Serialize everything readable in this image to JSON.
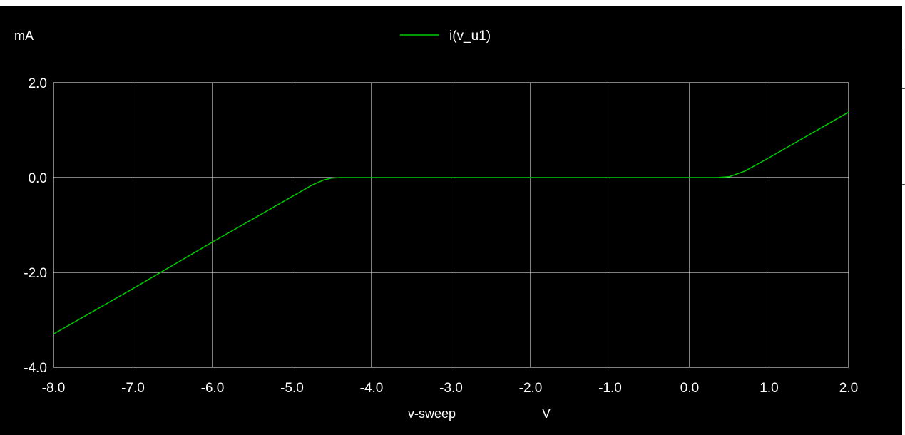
{
  "chart_data": {
    "type": "line",
    "y_unit": "mA",
    "xlabel": "v-sweep",
    "x_unit": "V",
    "xlim": [
      -8.0,
      2.0
    ],
    "ylim": [
      -4.0,
      2.0
    ],
    "x_ticks": [
      -8.0,
      -7.0,
      -6.0,
      -5.0,
      -4.0,
      -3.0,
      -2.0,
      -1.0,
      0.0,
      1.0,
      2.0
    ],
    "x_tick_labels": [
      "-8.0",
      "-7.0",
      "-6.0",
      "-5.0",
      "-4.0",
      "-3.0",
      "-2.0",
      "-1.0",
      "0.0",
      "1.0",
      "2.0"
    ],
    "y_tick_labels": [
      {
        "value": 2.0,
        "label": "2.0"
      },
      {
        "value": 0.0,
        "label": "0.0"
      },
      {
        "value": -2.0,
        "label": "-2.0"
      },
      {
        "value": -4.0,
        "label": "-4.0"
      }
    ],
    "grid": true,
    "legend_position": "top-center",
    "background_color": "#000000",
    "grid_color": "#ffffff",
    "series": [
      {
        "name": "i(v_u1)",
        "color": "#00cc00",
        "points": [
          [
            -8.0,
            -3.3
          ],
          [
            -7.5,
            -2.82
          ],
          [
            -7.0,
            -2.34
          ],
          [
            -6.5,
            -1.85
          ],
          [
            -6.0,
            -1.36
          ],
          [
            -5.5,
            -0.88
          ],
          [
            -5.0,
            -0.4
          ],
          [
            -4.75,
            -0.16
          ],
          [
            -4.6,
            -0.05
          ],
          [
            -4.5,
            -0.01
          ],
          [
            -4.4,
            0.0
          ],
          [
            -3.0,
            0.0
          ],
          [
            -1.0,
            0.0
          ],
          [
            0.0,
            0.0
          ],
          [
            0.35,
            0.0
          ],
          [
            0.5,
            0.02
          ],
          [
            0.7,
            0.14
          ],
          [
            1.0,
            0.42
          ],
          [
            1.5,
            0.9
          ],
          [
            2.0,
            1.38
          ]
        ]
      }
    ]
  }
}
